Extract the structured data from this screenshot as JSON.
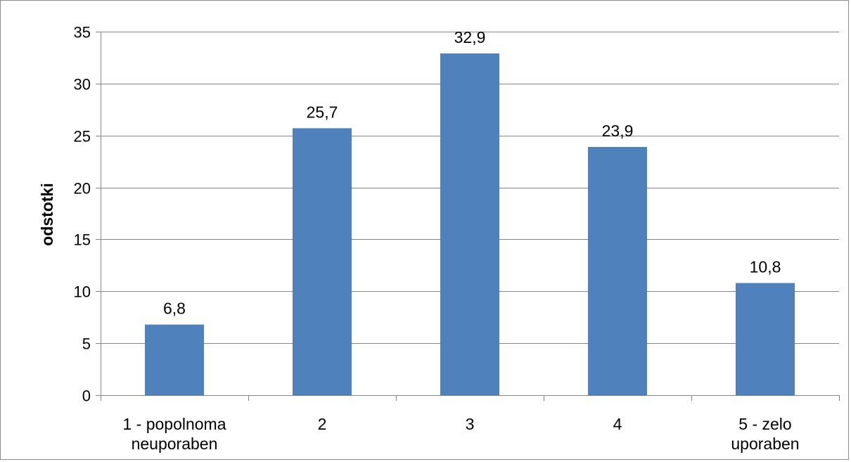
{
  "chart_data": {
    "type": "bar",
    "categories": [
      [
        "1 - popolnoma",
        "neuporaben"
      ],
      [
        "2"
      ],
      [
        "3"
      ],
      [
        "4"
      ],
      [
        "5 - zelo",
        "uporaben"
      ]
    ],
    "values": [
      6.8,
      25.7,
      32.9,
      23.9,
      10.8
    ],
    "data_labels": [
      "6,8",
      "25,7",
      "32,9",
      "23,9",
      "10,8"
    ],
    "title": "",
    "xlabel": "",
    "ylabel": "odstotki",
    "ylim": [
      0,
      35
    ],
    "yticks": [
      0,
      5,
      10,
      15,
      20,
      25,
      30,
      35
    ],
    "grid": true,
    "legend": "none",
    "bar_color": "#4f81bd",
    "grid_color": "#868686"
  }
}
